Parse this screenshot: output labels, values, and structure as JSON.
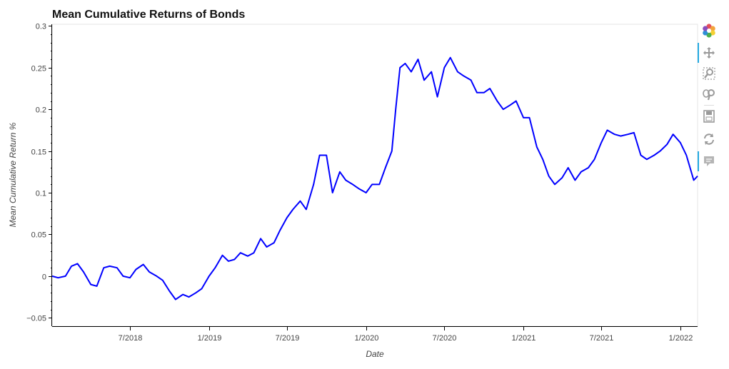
{
  "chart_data": {
    "type": "line",
    "title": "Mean Cumulative Returns of Bonds",
    "xlabel": "Date",
    "ylabel": "Mean Cumulative Return %",
    "x_ticks": [
      "7/2018",
      "1/2019",
      "7/2019",
      "1/2020",
      "7/2020",
      "1/2021",
      "7/2021",
      "1/2022"
    ],
    "y_ticks": [
      "0.3",
      "0.25",
      "0.2",
      "0.15",
      "0.1",
      "0.05",
      "0",
      "−0.05"
    ],
    "xlim": [
      "2018-01-01",
      "2022-02-10"
    ],
    "ylim": [
      -0.06,
      0.302
    ],
    "grid": false,
    "series": [
      {
        "color": "#0000ff",
        "x": [
          "2018-01-01",
          "2018-01-15",
          "2018-02-01",
          "2018-02-15",
          "2018-03-01",
          "2018-03-15",
          "2018-04-01",
          "2018-04-15",
          "2018-05-01",
          "2018-05-15",
          "2018-06-01",
          "2018-06-15",
          "2018-07-01",
          "2018-07-15",
          "2018-08-01",
          "2018-08-15",
          "2018-09-01",
          "2018-09-15",
          "2018-10-01",
          "2018-10-15",
          "2018-11-01",
          "2018-11-15",
          "2018-12-01",
          "2018-12-15",
          "2019-01-01",
          "2019-01-15",
          "2019-02-01",
          "2019-02-15",
          "2019-03-01",
          "2019-03-15",
          "2019-04-01",
          "2019-04-15",
          "2019-05-01",
          "2019-05-15",
          "2019-06-01",
          "2019-06-15",
          "2019-07-01",
          "2019-07-15",
          "2019-08-01",
          "2019-08-15",
          "2019-09-01",
          "2019-09-15",
          "2019-10-01",
          "2019-10-15",
          "2019-11-01",
          "2019-11-15",
          "2019-12-01",
          "2019-12-15",
          "2020-01-01",
          "2020-01-15",
          "2020-02-01",
          "2020-02-15",
          "2020-03-01",
          "2020-03-10",
          "2020-03-20",
          "2020-04-01",
          "2020-04-15",
          "2020-05-01",
          "2020-05-15",
          "2020-06-01",
          "2020-06-15",
          "2020-07-01",
          "2020-07-15",
          "2020-08-01",
          "2020-08-15",
          "2020-09-01",
          "2020-09-15",
          "2020-10-01",
          "2020-10-15",
          "2020-11-01",
          "2020-11-15",
          "2020-12-01",
          "2020-12-15",
          "2021-01-01",
          "2021-01-15",
          "2021-02-01",
          "2021-02-15",
          "2021-03-01",
          "2021-03-15",
          "2021-04-01",
          "2021-04-15",
          "2021-05-01",
          "2021-05-15",
          "2021-06-01",
          "2021-06-15",
          "2021-07-01",
          "2021-07-15",
          "2021-08-01",
          "2021-08-15",
          "2021-09-01",
          "2021-09-15",
          "2021-10-01",
          "2021-10-15",
          "2021-11-01",
          "2021-11-15",
          "2021-12-01",
          "2021-12-15",
          "2022-01-01",
          "2022-01-15",
          "2022-02-01",
          "2022-02-10"
        ],
        "y": [
          0.0,
          -0.002,
          0.0,
          0.012,
          0.015,
          0.005,
          -0.01,
          -0.012,
          0.01,
          0.012,
          0.01,
          0.0,
          -0.002,
          0.008,
          0.014,
          0.005,
          0.0,
          -0.005,
          -0.018,
          -0.028,
          -0.022,
          -0.025,
          -0.02,
          -0.015,
          0.0,
          0.01,
          0.025,
          0.018,
          0.02,
          0.028,
          0.024,
          0.028,
          0.045,
          0.035,
          0.04,
          0.055,
          0.07,
          0.08,
          0.09,
          0.08,
          0.11,
          0.145,
          0.145,
          0.1,
          0.125,
          0.115,
          0.11,
          0.105,
          0.1,
          0.11,
          0.11,
          0.13,
          0.15,
          0.2,
          0.25,
          0.255,
          0.245,
          0.26,
          0.235,
          0.245,
          0.215,
          0.25,
          0.262,
          0.245,
          0.24,
          0.235,
          0.22,
          0.22,
          0.225,
          0.21,
          0.2,
          0.205,
          0.21,
          0.19,
          0.19,
          0.155,
          0.14,
          0.12,
          0.11,
          0.118,
          0.13,
          0.115,
          0.125,
          0.13,
          0.14,
          0.16,
          0.175,
          0.17,
          0.168,
          0.17,
          0.172,
          0.145,
          0.14,
          0.145,
          0.15,
          0.158,
          0.17,
          0.16,
          0.145,
          0.115,
          0.12
        ]
      }
    ]
  },
  "toolbar": {
    "tools": [
      {
        "name": "bokeh-logo-icon"
      },
      {
        "name": "pan-tool-icon",
        "active": true
      },
      {
        "name": "box-zoom-tool-icon"
      },
      {
        "name": "wheel-zoom-tool-icon"
      },
      {
        "name": "save-tool-icon"
      },
      {
        "name": "reset-tool-icon"
      },
      {
        "name": "hover-tool-icon",
        "active": true
      }
    ]
  }
}
